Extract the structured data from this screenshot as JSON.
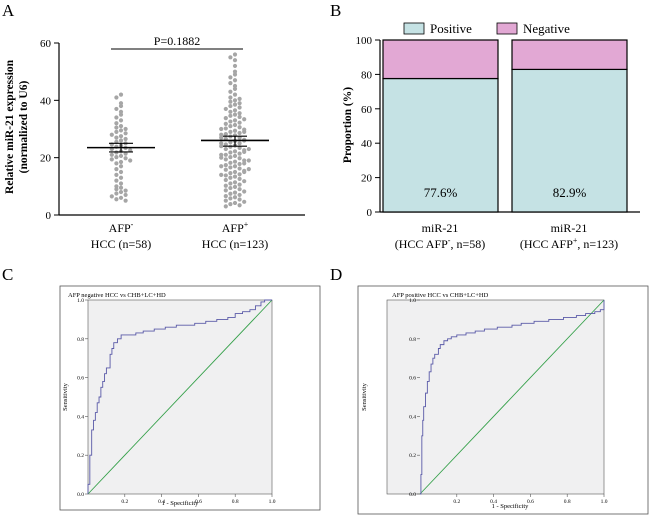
{
  "colors": {
    "dots": "#a6a6a6",
    "positive": "#c5e2e4",
    "negative": "#e2a8d4",
    "roc_curve": "#5a5aa8",
    "reference_line": "#35a04a",
    "roc_bg": "#f0f0f1"
  },
  "chart_data": [
    {
      "id": "A",
      "panel_label": "A",
      "type": "scatter",
      "title": "",
      "ylabel_line1": "Relative miR-21 expression",
      "ylabel_line2": "(normalized to U6)",
      "ylim": [
        0,
        60
      ],
      "yticks": [
        "0",
        "20",
        "40",
        "60"
      ],
      "significance": "P=0.1882",
      "groups": [
        {
          "label_main": "AFP",
          "label_sup": "-",
          "label_sub": "HCC (n=58)",
          "n": 58,
          "mean": 23.5,
          "sem_low": 22.0,
          "sem_high": 25.0,
          "values": [
            42,
            41,
            39,
            38,
            37,
            36,
            35,
            34,
            33,
            32,
            31,
            30.5,
            30,
            29.5,
            29,
            28.5,
            28,
            27.5,
            27,
            26.5,
            26,
            25.5,
            25,
            24.6,
            24.2,
            23.8,
            23.4,
            23,
            22.6,
            22.2,
            21.8,
            21.4,
            21,
            20.6,
            20.2,
            19.8,
            19.4,
            19,
            18.5,
            18,
            17,
            16,
            15,
            14,
            13,
            12,
            11,
            10,
            9.5,
            9,
            8.5,
            8,
            7.5,
            7,
            6.5,
            6,
            5.5,
            5
          ]
        },
        {
          "label_main": "AFP",
          "label_sup": "+",
          "label_sub": "HCC (n=123)",
          "n": 123,
          "mean": 26.0,
          "sem_low": 24.0,
          "sem_high": 27.5,
          "values": [
            56,
            55,
            54,
            52,
            50,
            49,
            48,
            47,
            46,
            45,
            44,
            43,
            42,
            41,
            40.5,
            40,
            39.5,
            39,
            38.5,
            38,
            37.5,
            37,
            36.5,
            36,
            35.5,
            35,
            34.6,
            34.2,
            33.8,
            33.4,
            33,
            32.6,
            32.2,
            31.8,
            31.4,
            31,
            30.6,
            30.2,
            29.8,
            29.4,
            29,
            28.6,
            28.2,
            27.8,
            27.4,
            27,
            26.6,
            26.2,
            25.8,
            25.4,
            25,
            24.6,
            24.2,
            23.8,
            23.4,
            23,
            22.6,
            22.2,
            21.8,
            21.4,
            21,
            20.6,
            20.2,
            19.8,
            19.4,
            19,
            18.6,
            18.2,
            17.8,
            17.4,
            17,
            16.6,
            16.2,
            15.8,
            15.4,
            15,
            14.6,
            14.2,
            13.8,
            13.4,
            13,
            12.6,
            12.2,
            11.8,
            11.4,
            11,
            10.6,
            10.2,
            9.8,
            9.4,
            9,
            8.6,
            8.2,
            7.8,
            7.4,
            7,
            6.6,
            6.2,
            5.8,
            5.4,
            5,
            4.6,
            4.2,
            3.8,
            3.4,
            3,
            30,
            29,
            28,
            27,
            26,
            25,
            24,
            23,
            22,
            21,
            20,
            19,
            18,
            17,
            16,
            15,
            14
          ]
        }
      ]
    },
    {
      "id": "B",
      "panel_label": "B",
      "type": "bar",
      "stacked": true,
      "ylabel": "Proportion (%)",
      "ylim": [
        0,
        100
      ],
      "yticks": [
        "0",
        "20",
        "40",
        "60",
        "80",
        "100"
      ],
      "legend": [
        {
          "name": "Positive",
          "color_key": "positive"
        },
        {
          "name": "Negative",
          "color_key": "negative"
        }
      ],
      "categories": [
        {
          "line1": "miR-21",
          "line2_pre": "(HCC AFP",
          "line2_sup": "-",
          "line2_post": ", n=58)"
        },
        {
          "line1": "miR-21",
          "line2_pre": "(HCC AFP",
          "line2_sup": "+",
          "line2_post": ", n=123)"
        }
      ],
      "series": [
        {
          "name": "Positive",
          "values": [
            77.6,
            82.9
          ]
        },
        {
          "name": "Negative",
          "values": [
            22.4,
            17.1
          ]
        }
      ],
      "labels": [
        "77.6%",
        "82.9%"
      ]
    },
    {
      "id": "C",
      "panel_label": "C",
      "type": "line",
      "title": "AFP negative HCC vs CHB+LC+HD",
      "xlabel": "1 - Specificity",
      "ylabel": "Sensitivity",
      "xlim": [
        0,
        1
      ],
      "ylim": [
        0,
        1
      ],
      "ticks": [
        "0.0",
        "0.2",
        "0.4",
        "0.6",
        "0.8",
        "1.0"
      ],
      "roc": [
        [
          0,
          0
        ],
        [
          0,
          0.05
        ],
        [
          0.01,
          0.12
        ],
        [
          0.01,
          0.2
        ],
        [
          0.02,
          0.27
        ],
        [
          0.02,
          0.33
        ],
        [
          0.03,
          0.38
        ],
        [
          0.04,
          0.42
        ],
        [
          0.05,
          0.47
        ],
        [
          0.06,
          0.5
        ],
        [
          0.07,
          0.55
        ],
        [
          0.08,
          0.58
        ],
        [
          0.09,
          0.62
        ],
        [
          0.1,
          0.65
        ],
        [
          0.12,
          0.72
        ],
        [
          0.13,
          0.75
        ],
        [
          0.14,
          0.78
        ],
        [
          0.16,
          0.8
        ],
        [
          0.18,
          0.82
        ],
        [
          0.22,
          0.82
        ],
        [
          0.26,
          0.83
        ],
        [
          0.3,
          0.84
        ],
        [
          0.36,
          0.85
        ],
        [
          0.42,
          0.86
        ],
        [
          0.48,
          0.87
        ],
        [
          0.52,
          0.87
        ],
        [
          0.58,
          0.88
        ],
        [
          0.64,
          0.89
        ],
        [
          0.7,
          0.9
        ],
        [
          0.76,
          0.91
        ],
        [
          0.8,
          0.93
        ],
        [
          0.84,
          0.94
        ],
        [
          0.88,
          0.95
        ],
        [
          0.91,
          0.97
        ],
        [
          0.94,
          0.99
        ],
        [
          0.96,
          1
        ],
        [
          1,
          1
        ]
      ],
      "reference": [
        [
          0,
          0
        ],
        [
          1,
          1
        ]
      ]
    },
    {
      "id": "D",
      "panel_label": "D",
      "type": "line",
      "title": "AFP positive HCC vs CHB+LC+HD",
      "xlabel": "1 - Specificity",
      "ylabel": "Sensitivity",
      "xlim": [
        0,
        1
      ],
      "ylim": [
        0,
        1
      ],
      "ticks": [
        "0.0",
        "0.2",
        "0.4",
        "0.6",
        "0.8",
        "1.0"
      ],
      "roc": [
        [
          0,
          0
        ],
        [
          0.005,
          0.1
        ],
        [
          0.01,
          0.2
        ],
        [
          0.01,
          0.3
        ],
        [
          0.015,
          0.38
        ],
        [
          0.02,
          0.45
        ],
        [
          0.03,
          0.52
        ],
        [
          0.04,
          0.58
        ],
        [
          0.05,
          0.63
        ],
        [
          0.06,
          0.67
        ],
        [
          0.07,
          0.7
        ],
        [
          0.08,
          0.72
        ],
        [
          0.1,
          0.75
        ],
        [
          0.11,
          0.77
        ],
        [
          0.13,
          0.79
        ],
        [
          0.15,
          0.8
        ],
        [
          0.17,
          0.81
        ],
        [
          0.2,
          0.82
        ],
        [
          0.25,
          0.83
        ],
        [
          0.3,
          0.84
        ],
        [
          0.35,
          0.85
        ],
        [
          0.42,
          0.86
        ],
        [
          0.5,
          0.87
        ],
        [
          0.55,
          0.88
        ],
        [
          0.62,
          0.89
        ],
        [
          0.7,
          0.9
        ],
        [
          0.78,
          0.91
        ],
        [
          0.85,
          0.92
        ],
        [
          0.9,
          0.93
        ],
        [
          0.95,
          0.94
        ],
        [
          0.98,
          0.95
        ],
        [
          1,
          0.97
        ],
        [
          1,
          1
        ]
      ],
      "reference": [
        [
          0,
          0
        ],
        [
          1,
          1
        ]
      ]
    }
  ]
}
